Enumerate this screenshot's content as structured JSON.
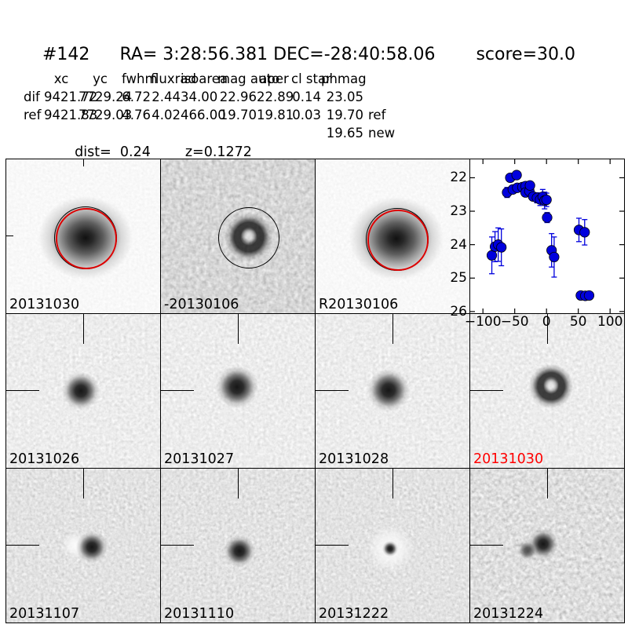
{
  "header": {
    "id": "#142",
    "coords": "RA= 3:28:56.381 DEC=-28:40:58.06",
    "score": "score=30.0"
  },
  "measurements": {
    "columns": [
      "xc",
      "yc",
      "fwhm",
      "fluxrad",
      "isoarea",
      "mag auto",
      "aper",
      "cl star",
      "phmag"
    ],
    "rows": [
      {
        "label": "dif",
        "xc": "9421.72",
        "yc": "7729.24",
        "fwhm": "6.72",
        "fluxrad": "2.44",
        "isoarea": "34.00",
        "mag_auto": "22.96",
        "aper": "22.89",
        "cl_star": "0.14",
        "phmag": "23.05",
        "suffix": ""
      },
      {
        "label": "ref",
        "xc": "9421.83",
        "yc": "7729.03",
        "fwhm": "4.76",
        "fluxrad": "4.02",
        "isoarea": "466.00",
        "mag_auto": "19.70",
        "aper": "19.81",
        "cl_star": "0.03",
        "phmag": "19.70",
        "suffix": "ref"
      }
    ],
    "extra": {
      "phmag": "19.65",
      "suffix": "new"
    },
    "dist": "dist=  0.24",
    "z": "z=0.1272"
  },
  "panels": [
    {
      "label": "20131030",
      "label_color": "#000000",
      "kind": "new-image-circled"
    },
    {
      "label": "-20130106",
      "label_color": "#000000",
      "kind": "difference-image-circled"
    },
    {
      "label": "R20130106",
      "label_color": "#000000",
      "kind": "reference-image-circled"
    },
    {
      "label": "20131026",
      "label_color": "#000000",
      "kind": "difference-stamp"
    },
    {
      "label": "20131027",
      "label_color": "#000000",
      "kind": "difference-stamp"
    },
    {
      "label": "20131028",
      "label_color": "#000000",
      "kind": "difference-stamp"
    },
    {
      "label": "20131030",
      "label_color": "#ff0000",
      "kind": "difference-stamp-current"
    },
    {
      "label": "20131107",
      "label_color": "#000000",
      "kind": "difference-stamp"
    },
    {
      "label": "20131110",
      "label_color": "#000000",
      "kind": "difference-stamp"
    },
    {
      "label": "20131222",
      "label_color": "#000000",
      "kind": "difference-stamp"
    },
    {
      "label": "20131224",
      "label_color": "#000000",
      "kind": "difference-stamp"
    }
  ],
  "chart_data": {
    "type": "scatter",
    "title": "",
    "xlabel": "",
    "ylabel": "",
    "xlim": [
      -120,
      122
    ],
    "ylim": [
      26.05,
      21.45
    ],
    "y_inverted": true,
    "xticks": [
      -100,
      -50,
      0,
      50,
      100
    ],
    "yticks": [
      22,
      23,
      24,
      25,
      26
    ],
    "grid": false,
    "marker": "o",
    "marker_color": "#0000dd",
    "edge_color": "#000000",
    "series": [
      {
        "name": "light-curve-mag-vs-epoch-days",
        "points": [
          {
            "x": -86,
            "y": 24.32,
            "yerr": 0.55
          },
          {
            "x": -81,
            "y": 24.06,
            "yerr": 0.45
          },
          {
            "x": -76,
            "y": 24.0,
            "yerr": 0.5
          },
          {
            "x": -71,
            "y": 24.08,
            "yerr": 0.55
          },
          {
            "x": -62,
            "y": 22.44,
            "yerr": 0.15
          },
          {
            "x": -57,
            "y": 22.0,
            "yerr": 0.1
          },
          {
            "x": -53,
            "y": 22.35,
            "yerr": 0.12
          },
          {
            "x": -47,
            "y": 21.92,
            "yerr": 0.1
          },
          {
            "x": -46,
            "y": 22.3,
            "yerr": 0.1
          },
          {
            "x": -38,
            "y": 22.28,
            "yerr": 0.1
          },
          {
            "x": -33,
            "y": 22.25,
            "yerr": 0.1
          },
          {
            "x": -33,
            "y": 22.44,
            "yerr": 0.12
          },
          {
            "x": -27,
            "y": 22.4,
            "yerr": 0.12
          },
          {
            "x": -26,
            "y": 22.23,
            "yerr": 0.1
          },
          {
            "x": -21,
            "y": 22.56,
            "yerr": 0.12
          },
          {
            "x": -15,
            "y": 22.6,
            "yerr": 0.15
          },
          {
            "x": -10,
            "y": 22.65,
            "yerr": 0.18
          },
          {
            "x": -6,
            "y": 22.57,
            "yerr": 0.22
          },
          {
            "x": -3,
            "y": 22.68,
            "yerr": 0.25
          },
          {
            "x": 0,
            "y": 22.66,
            "yerr": 0.2
          },
          {
            "x": 1,
            "y": 23.19,
            "yerr": 0.15
          },
          {
            "x": 8,
            "y": 24.17,
            "yerr": 0.5
          },
          {
            "x": 12,
            "y": 24.37,
            "yerr": 0.6
          },
          {
            "x": 51,
            "y": 23.56,
            "yerr": 0.35
          },
          {
            "x": 60,
            "y": 23.63,
            "yerr": 0.38
          },
          {
            "x": 54,
            "y": 25.52,
            "yerr": 0.06
          },
          {
            "x": 61,
            "y": 25.53,
            "yerr": 0.06
          },
          {
            "x": 67,
            "y": 25.52,
            "yerr": 0.06
          }
        ]
      }
    ]
  }
}
